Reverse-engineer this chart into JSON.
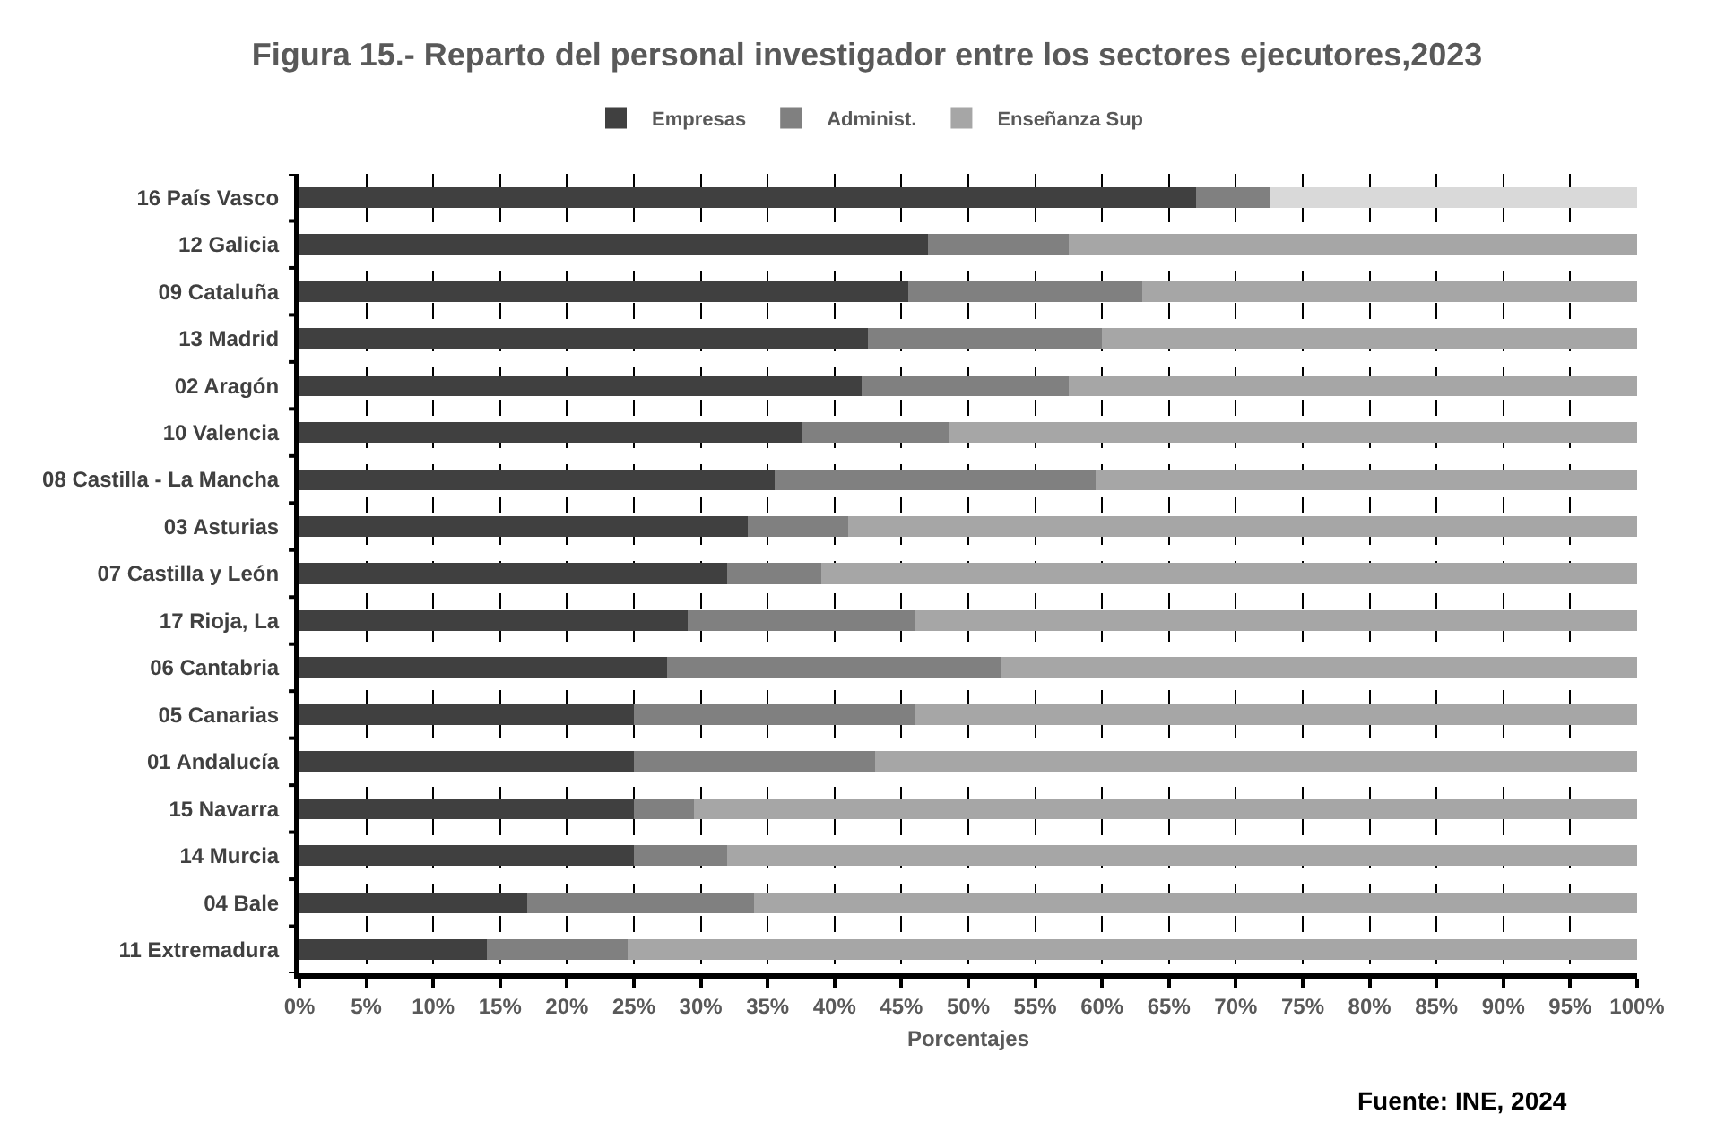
{
  "chart_data": {
    "type": "bar",
    "orientation": "horizontal",
    "stacked": true,
    "title": "Figura 15.- Reparto del personal investigador entre los sectores ejecutores,2023",
    "xlabel": "Porcentajes",
    "categories": [
      "16 País Vasco",
      "12 Galicia",
      "09 Cataluña",
      "13 Madrid",
      "02 Aragón",
      "10 Valencia",
      "08 Castilla - La Mancha",
      "03 Asturias",
      "07 Castilla y León",
      "17 Rioja, La",
      "06 Cantabria",
      "05 Canarias",
      "01 Andalucía",
      "15 Navarra",
      "14 Murcia",
      "04 Bale",
      "11 Extremadura"
    ],
    "series": [
      {
        "name": "Empresas",
        "color": "#404040",
        "values": [
          67,
          47,
          45.5,
          42.5,
          42,
          37.5,
          35.5,
          33.5,
          32,
          29,
          27.5,
          25,
          25,
          25,
          25,
          17,
          14
        ]
      },
      {
        "name": "Administ.",
        "color": "#808080",
        "values": [
          5.5,
          10.5,
          17.5,
          17.5,
          15.5,
          11,
          24,
          7.5,
          7,
          17,
          25,
          21,
          18,
          4.5,
          7,
          17,
          10.5
        ]
      },
      {
        "name": "Enseñanza Sup",
        "color": "#a6a6a6",
        "colors": [
          "#d9d9d9",
          "#a6a6a6",
          "#a6a6a6",
          "#a6a6a6",
          "#a6a6a6",
          "#a6a6a6",
          "#a6a6a6",
          "#a6a6a6",
          "#a6a6a6",
          "#a6a6a6",
          "#a6a6a6",
          "#a6a6a6",
          "#a6a6a6",
          "#a6a6a6",
          "#a6a6a6",
          "#a6a6a6",
          "#a6a6a6"
        ],
        "values": [
          27.5,
          42.5,
          37,
          40,
          42.5,
          51.5,
          40.5,
          59,
          61,
          54,
          47.5,
          54,
          57,
          70.5,
          68,
          66,
          75.5
        ]
      }
    ],
    "xlim": [
      0,
      100
    ],
    "xticks": [
      {
        "value": 0,
        "label": "0%"
      },
      {
        "value": 5,
        "label": "5%"
      },
      {
        "value": 10,
        "label": "10%"
      },
      {
        "value": 15,
        "label": "15%"
      },
      {
        "value": 20,
        "label": "20%"
      },
      {
        "value": 25,
        "label": "25%"
      },
      {
        "value": 30,
        "label": "30%"
      },
      {
        "value": 35,
        "label": "35%"
      },
      {
        "value": 40,
        "label": "40%"
      },
      {
        "value": 45,
        "label": "45%"
      },
      {
        "value": 50,
        "label": "50%"
      },
      {
        "value": 55,
        "label": "55%"
      },
      {
        "value": 60,
        "label": "60%"
      },
      {
        "value": 65,
        "label": "65%"
      },
      {
        "value": 70,
        "label": "70%"
      },
      {
        "value": 75,
        "label": "75%"
      },
      {
        "value": 80,
        "label": "80%"
      },
      {
        "value": 85,
        "label": "85%"
      },
      {
        "value": 90,
        "label": "90%"
      },
      {
        "value": 95,
        "label": "95%"
      },
      {
        "value": 100,
        "label": "100%"
      }
    ],
    "grid": "x",
    "legend": "top",
    "annotations": [
      "Fuente: INE, 2024"
    ]
  }
}
